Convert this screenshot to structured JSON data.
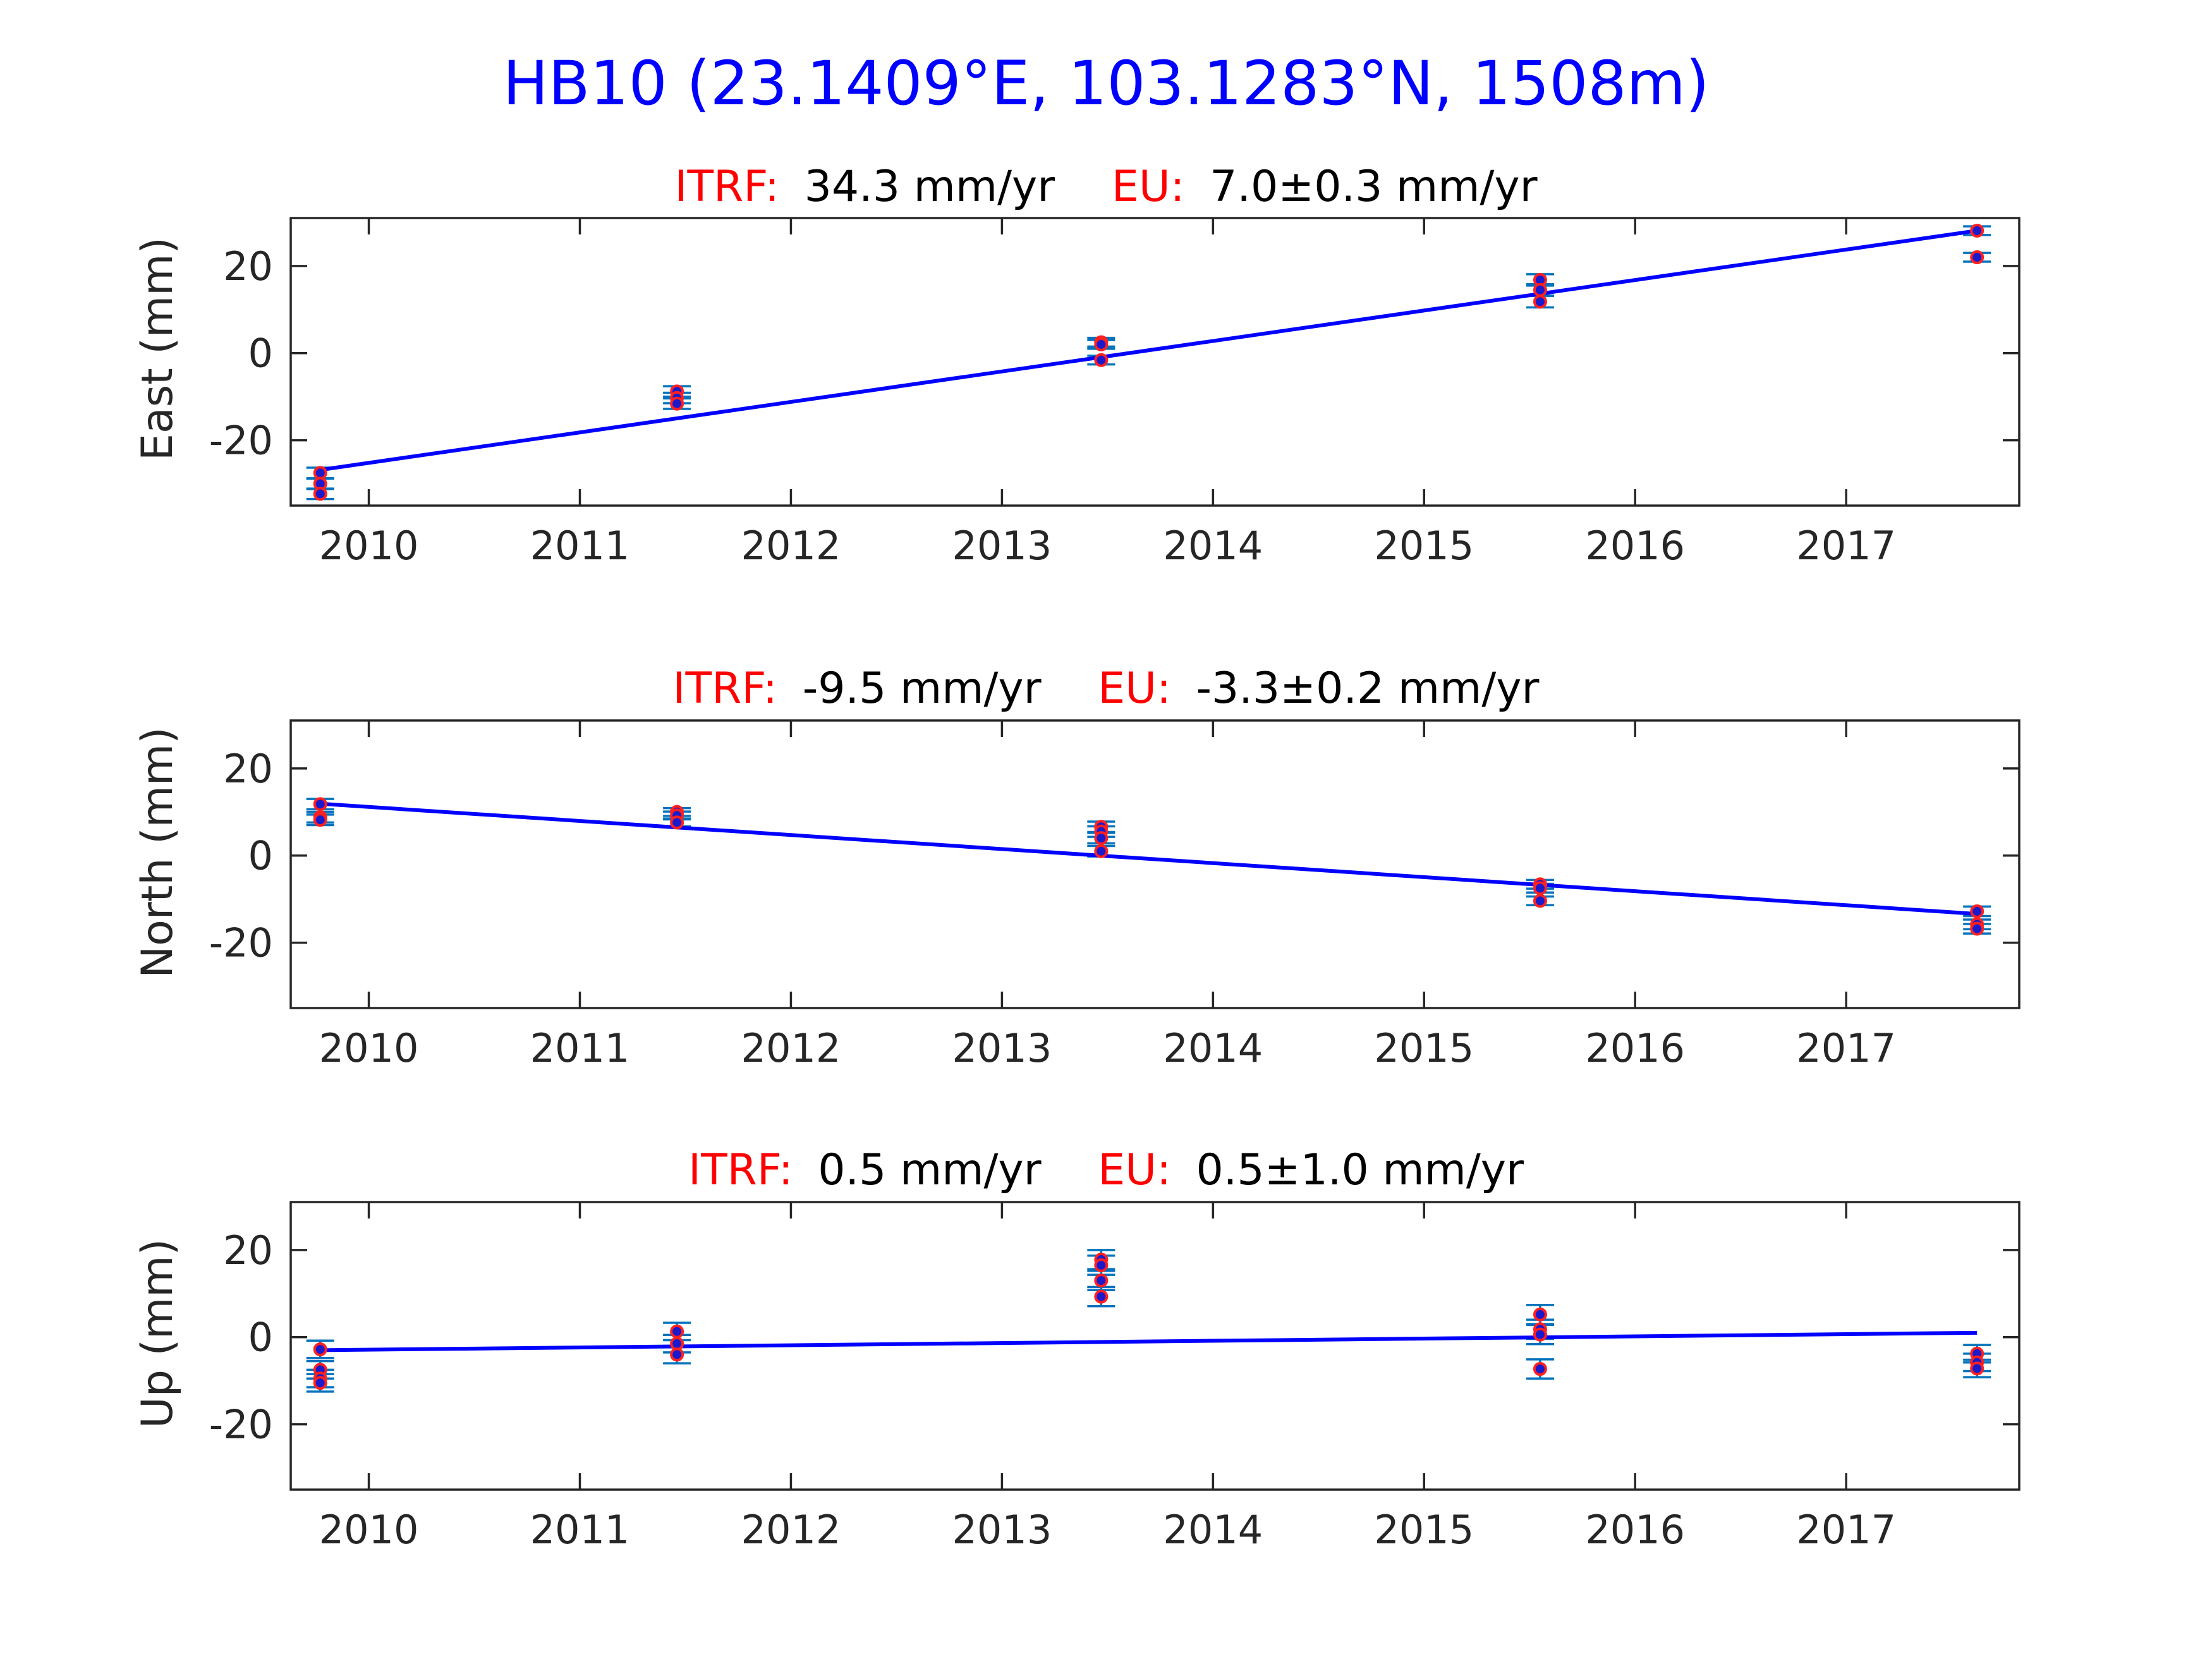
{
  "figure_title": "HB10 (23.1409°E, 103.1283°N, 1508m)",
  "colors": {
    "title": "#0000ff",
    "label_red": "#ff0000",
    "fit_line": "#0000ff",
    "error_bar": "#0072bd",
    "marker_fill": "#1a1acc",
    "marker_edge": "#ff2020"
  },
  "chart_data": [
    {
      "type": "scatter",
      "title_parts": {
        "itrf_label": "ITRF:",
        "itrf_value": "34.3 mm/yr",
        "eu_label": "EU:",
        "eu_value": "7.0±0.3 mm/yr"
      },
      "ylabel": "East (mm)",
      "xlim": [
        2009.63,
        2017.82
      ],
      "ylim": [
        -35,
        31
      ],
      "xticks": [
        2010,
        2011,
        2012,
        2013,
        2014,
        2015,
        2016,
        2017
      ],
      "xtick_labels": [
        "2010",
        "2011",
        "2012",
        "2013",
        "2014",
        "2015",
        "2016",
        "2017"
      ],
      "yticks": [
        -20,
        0,
        20
      ],
      "ytick_labels": [
        "-20",
        "0",
        "20"
      ],
      "grid": false,
      "fit_line": {
        "x": [
          2009.77,
          2017.62
        ],
        "y": [
          -26.8,
          28.1
        ]
      },
      "series": [
        {
          "points": [
            {
              "x": 2009.77,
              "y": -27.5,
              "err": 1.2
            },
            {
              "x": 2009.77,
              "y": -30.0,
              "err": 1.2
            },
            {
              "x": 2009.77,
              "y": -32.3,
              "err": 1.2
            },
            {
              "x": 2011.46,
              "y": -8.8,
              "err": 1.2
            },
            {
              "x": 2011.46,
              "y": -10.3,
              "err": 1.2
            },
            {
              "x": 2011.46,
              "y": -11.6,
              "err": 1.2
            },
            {
              "x": 2013.47,
              "y": 2.5,
              "err": 1.0
            },
            {
              "x": 2013.47,
              "y": 2.0,
              "err": 1.0
            },
            {
              "x": 2013.47,
              "y": -1.6,
              "err": 1.0
            },
            {
              "x": 2015.55,
              "y": 16.8,
              "err": 1.3
            },
            {
              "x": 2015.55,
              "y": 14.5,
              "err": 1.3
            },
            {
              "x": 2015.55,
              "y": 11.8,
              "err": 1.3
            },
            {
              "x": 2017.62,
              "y": 28.1,
              "err": 1.0
            },
            {
              "x": 2017.62,
              "y": 22.0,
              "err": 1.0
            }
          ]
        }
      ]
    },
    {
      "type": "scatter",
      "title_parts": {
        "itrf_label": "ITRF:",
        "itrf_value": "-9.5 mm/yr",
        "eu_label": "EU:",
        "eu_value": "-3.3±0.2 mm/yr"
      },
      "ylabel": "North (mm)",
      "xlim": [
        2009.63,
        2017.82
      ],
      "ylim": [
        -35,
        31
      ],
      "xticks": [
        2010,
        2011,
        2012,
        2013,
        2014,
        2015,
        2016,
        2017
      ],
      "xtick_labels": [
        "2010",
        "2011",
        "2012",
        "2013",
        "2014",
        "2015",
        "2016",
        "2017"
      ],
      "yticks": [
        -20,
        0,
        20
      ],
      "ytick_labels": [
        "-20",
        "0",
        "20"
      ],
      "grid": false,
      "fit_line": {
        "x": [
          2009.77,
          2017.62
        ],
        "y": [
          11.9,
          -13.4
        ]
      },
      "series": [
        {
          "points": [
            {
              "x": 2009.77,
              "y": 11.8,
              "err": 1.2
            },
            {
              "x": 2009.77,
              "y": 8.8,
              "err": 1.2
            },
            {
              "x": 2009.77,
              "y": 8.2,
              "err": 1.2
            },
            {
              "x": 2011.46,
              "y": 10.0,
              "err": 0.9
            },
            {
              "x": 2011.46,
              "y": 9.2,
              "err": 0.9
            },
            {
              "x": 2011.46,
              "y": 7.6,
              "err": 0.9
            },
            {
              "x": 2013.47,
              "y": 6.6,
              "err": 1.2
            },
            {
              "x": 2013.47,
              "y": 5.5,
              "err": 1.2
            },
            {
              "x": 2013.47,
              "y": 4.0,
              "err": 1.2
            },
            {
              "x": 2013.47,
              "y": 1.0,
              "err": 1.2
            },
            {
              "x": 2015.55,
              "y": -6.6,
              "err": 1.0
            },
            {
              "x": 2015.55,
              "y": -7.5,
              "err": 1.0
            },
            {
              "x": 2015.55,
              "y": -10.4,
              "err": 1.0
            },
            {
              "x": 2017.62,
              "y": -12.8,
              "err": 1.1
            },
            {
              "x": 2017.62,
              "y": -15.8,
              "err": 1.1
            },
            {
              "x": 2017.62,
              "y": -16.8,
              "err": 1.1
            }
          ]
        }
      ]
    },
    {
      "type": "scatter",
      "title_parts": {
        "itrf_label": "ITRF:",
        "itrf_value": "0.5 mm/yr",
        "eu_label": "EU:",
        "eu_value": "0.5±1.0 mm/yr"
      },
      "ylabel": "Up (mm)",
      "xlim": [
        2009.63,
        2017.82
      ],
      "ylim": [
        -35,
        31
      ],
      "xticks": [
        2010,
        2011,
        2012,
        2013,
        2014,
        2015,
        2016,
        2017
      ],
      "xtick_labels": [
        "2010",
        "2011",
        "2012",
        "2013",
        "2014",
        "2015",
        "2016",
        "2017"
      ],
      "yticks": [
        -20,
        0,
        20
      ],
      "ytick_labels": [
        "-20",
        "0",
        "20"
      ],
      "grid": false,
      "fit_line": {
        "x": [
          2009.77,
          2017.62
        ],
        "y": [
          -3.0,
          1.0
        ]
      },
      "series": [
        {
          "points": [
            {
              "x": 2009.77,
              "y": -2.8,
              "err": 2.0
            },
            {
              "x": 2009.77,
              "y": -7.5,
              "err": 2.0
            },
            {
              "x": 2009.77,
              "y": -9.5,
              "err": 2.0
            },
            {
              "x": 2009.77,
              "y": -10.5,
              "err": 2.0
            },
            {
              "x": 2011.46,
              "y": 1.3,
              "err": 2.0
            },
            {
              "x": 2011.46,
              "y": -1.5,
              "err": 2.0
            },
            {
              "x": 2011.46,
              "y": -4.0,
              "err": 2.0
            },
            {
              "x": 2013.47,
              "y": 17.8,
              "err": 2.2
            },
            {
              "x": 2013.47,
              "y": 16.5,
              "err": 2.2
            },
            {
              "x": 2013.47,
              "y": 13.0,
              "err": 2.2
            },
            {
              "x": 2013.47,
              "y": 9.3,
              "err": 2.2
            },
            {
              "x": 2015.55,
              "y": 5.2,
              "err": 2.2
            },
            {
              "x": 2015.55,
              "y": 1.8,
              "err": 2.2
            },
            {
              "x": 2015.55,
              "y": 0.6,
              "err": 2.2
            },
            {
              "x": 2015.55,
              "y": -7.3,
              "err": 2.2
            },
            {
              "x": 2017.62,
              "y": -3.8,
              "err": 2.0
            },
            {
              "x": 2017.62,
              "y": -5.8,
              "err": 2.0
            },
            {
              "x": 2017.62,
              "y": -7.2,
              "err": 2.0
            }
          ]
        }
      ]
    }
  ]
}
